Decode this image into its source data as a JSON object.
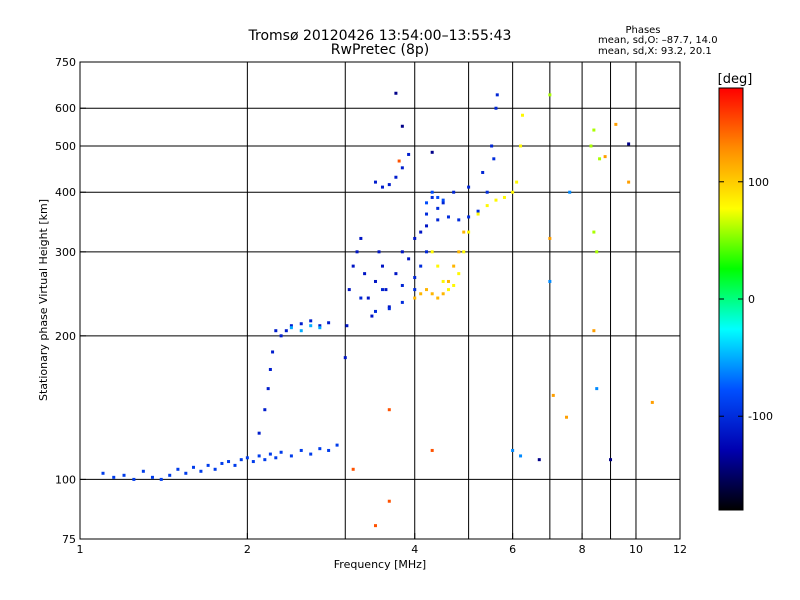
{
  "chart_data": {
    "type": "scatter",
    "title": "Tromsø 20120426 13:54:00–13:55:43",
    "subtitle": "RwPretec (8p)",
    "xlabel": "Frequency [MHz]",
    "ylabel": "Stationary phase Virtual Height [km]",
    "x_scale": "log",
    "y_scale": "log",
    "xlim": [
      1,
      12
    ],
    "ylim": [
      75,
      750
    ],
    "x_ticks": [
      1,
      2,
      4,
      6,
      8,
      10,
      12
    ],
    "y_ticks": [
      75,
      100,
      200,
      300,
      400,
      500,
      600,
      750
    ],
    "x_grid": [
      2,
      3,
      4,
      5,
      6,
      7,
      8,
      9,
      10
    ],
    "y_grid": [
      100,
      200,
      300,
      400,
      500,
      600
    ],
    "grid": true,
    "phases": {
      "heading": "Phases",
      "line_o": "mean, sd,O: –87.7, 14.0",
      "line_x": "mean, sd,X:  93.2, 20.1"
    },
    "colorbar": {
      "label": "[deg]",
      "range": [
        -180,
        180
      ],
      "ticks": [
        100,
        0,
        -100
      ],
      "colors": [
        "#ff0000",
        "#ff8c00",
        "#ffff00",
        "#00ff00",
        "#00ffff",
        "#0050ff",
        "#0000b0",
        "#000000"
      ]
    },
    "series": [
      {
        "phase": -90,
        "points": [
          [
            1.1,
            103
          ],
          [
            1.15,
            101
          ],
          [
            1.2,
            102
          ],
          [
            1.25,
            100
          ],
          [
            1.3,
            104
          ],
          [
            1.35,
            101
          ],
          [
            1.4,
            100
          ],
          [
            1.45,
            102
          ],
          [
            1.5,
            105
          ],
          [
            1.55,
            103
          ],
          [
            1.6,
            106
          ],
          [
            1.65,
            104
          ],
          [
            1.7,
            107
          ],
          [
            1.75,
            105
          ],
          [
            1.8,
            108
          ],
          [
            1.85,
            109
          ],
          [
            1.9,
            107
          ],
          [
            1.95,
            110
          ],
          [
            2.0,
            111
          ],
          [
            2.05,
            109
          ],
          [
            2.1,
            112
          ],
          [
            2.15,
            110
          ],
          [
            2.2,
            113
          ],
          [
            2.25,
            111
          ],
          [
            2.3,
            114
          ],
          [
            2.4,
            112
          ],
          [
            2.5,
            115
          ],
          [
            2.6,
            113
          ],
          [
            2.7,
            116
          ],
          [
            2.8,
            115
          ],
          [
            2.9,
            118
          ]
        ]
      },
      {
        "phase": -110,
        "points": [
          [
            2.1,
            125
          ],
          [
            2.15,
            140
          ],
          [
            2.18,
            155
          ],
          [
            2.2,
            170
          ],
          [
            2.22,
            185
          ],
          [
            2.25,
            205
          ],
          [
            2.3,
            200
          ],
          [
            2.35,
            205
          ],
          [
            2.4,
            210
          ],
          [
            2.5,
            212
          ],
          [
            2.6,
            215
          ],
          [
            2.7,
            210
          ],
          [
            2.8,
            213
          ]
        ]
      },
      {
        "phase": -50,
        "points": [
          [
            2.4,
            208
          ],
          [
            2.5,
            205
          ],
          [
            2.6,
            210
          ],
          [
            2.7,
            208
          ]
        ]
      },
      {
        "phase": -115,
        "points": [
          [
            3.0,
            180
          ],
          [
            3.02,
            210
          ],
          [
            3.05,
            250
          ],
          [
            3.1,
            280
          ],
          [
            3.15,
            300
          ],
          [
            3.2,
            320
          ],
          [
            3.25,
            270
          ],
          [
            3.3,
            240
          ],
          [
            3.35,
            220
          ],
          [
            3.4,
            260
          ],
          [
            3.45,
            300
          ],
          [
            3.5,
            280
          ],
          [
            3.55,
            250
          ],
          [
            3.6,
            230
          ],
          [
            3.7,
            270
          ],
          [
            3.8,
            300
          ],
          [
            3.9,
            290
          ],
          [
            4.0,
            320
          ],
          [
            4.1,
            330
          ],
          [
            4.2,
            340
          ]
        ]
      },
      {
        "phase": -105,
        "points": [
          [
            3.2,
            240
          ],
          [
            3.5,
            250
          ],
          [
            3.8,
            255
          ],
          [
            4.0,
            265
          ],
          [
            4.2,
            300
          ],
          [
            4.4,
            350
          ],
          [
            4.5,
            380
          ],
          [
            4.7,
            400
          ],
          [
            5.0,
            410
          ],
          [
            5.3,
            440
          ],
          [
            5.5,
            500
          ],
          [
            5.6,
            600
          ],
          [
            5.63,
            640
          ]
        ]
      },
      {
        "phase": -100,
        "points": [
          [
            3.4,
            225
          ],
          [
            3.6,
            228
          ],
          [
            3.8,
            235
          ],
          [
            4.0,
            250
          ],
          [
            4.1,
            280
          ],
          [
            4.2,
            360
          ],
          [
            4.3,
            390
          ],
          [
            4.4,
            370
          ],
          [
            4.6,
            355
          ],
          [
            4.8,
            350
          ],
          [
            5.0,
            355
          ],
          [
            5.2,
            365
          ],
          [
            5.4,
            400
          ],
          [
            5.55,
            470
          ]
        ]
      },
      {
        "phase": -110,
        "points": [
          [
            3.4,
            420
          ],
          [
            3.5,
            410
          ],
          [
            3.6,
            415
          ],
          [
            3.7,
            430
          ],
          [
            3.8,
            450
          ],
          [
            3.9,
            480
          ]
        ]
      },
      {
        "phase": -80,
        "points": [
          [
            4.2,
            380
          ],
          [
            4.3,
            400
          ],
          [
            4.4,
            390
          ],
          [
            4.5,
            385
          ]
        ]
      },
      {
        "phase": 80,
        "points": [
          [
            4.3,
            300
          ],
          [
            4.4,
            280
          ],
          [
            4.5,
            260
          ],
          [
            4.6,
            250
          ],
          [
            4.7,
            255
          ],
          [
            4.8,
            270
          ],
          [
            4.9,
            300
          ],
          [
            5.0,
            330
          ],
          [
            5.2,
            360
          ],
          [
            5.4,
            375
          ],
          [
            5.6,
            385
          ],
          [
            5.8,
            390
          ],
          [
            6.0,
            400
          ],
          [
            6.1,
            420
          ],
          [
            6.2,
            500
          ],
          [
            6.25,
            580
          ]
        ]
      },
      {
        "phase": 110,
        "points": [
          [
            4.0,
            240
          ],
          [
            4.1,
            245
          ],
          [
            4.2,
            250
          ],
          [
            4.3,
            245
          ],
          [
            4.4,
            240
          ],
          [
            4.5,
            245
          ],
          [
            4.6,
            260
          ],
          [
            4.7,
            280
          ],
          [
            4.8,
            300
          ],
          [
            4.9,
            330
          ]
        ]
      },
      {
        "phase": 60,
        "points": [
          [
            7.0,
            640
          ],
          [
            8.3,
            500
          ],
          [
            8.4,
            540
          ],
          [
            8.6,
            470
          ],
          [
            8.4,
            330
          ],
          [
            8.5,
            300
          ]
        ]
      },
      {
        "phase": 120,
        "points": [
          [
            7.0,
            320
          ],
          [
            8.4,
            205
          ],
          [
            9.2,
            555
          ],
          [
            9.7,
            420
          ],
          [
            10.7,
            145
          ],
          [
            7.1,
            150
          ],
          [
            7.5,
            135
          ],
          [
            8.8,
            475
          ]
        ]
      },
      {
        "phase": -60,
        "points": [
          [
            6.0,
            115
          ],
          [
            6.2,
            112
          ],
          [
            7.0,
            260
          ],
          [
            7.6,
            400
          ],
          [
            8.5,
            155
          ]
        ]
      },
      {
        "phase": -140,
        "points": [
          [
            9.0,
            110
          ],
          [
            9.7,
            505
          ],
          [
            3.7,
            645
          ],
          [
            3.8,
            550
          ],
          [
            4.3,
            485
          ],
          [
            6.7,
            110
          ]
        ]
      },
      {
        "phase": 150,
        "points": [
          [
            3.4,
            80
          ],
          [
            3.6,
            90
          ],
          [
            3.1,
            105
          ],
          [
            3.6,
            140
          ],
          [
            4.3,
            115
          ],
          [
            3.75,
            465
          ]
        ]
      }
    ]
  }
}
